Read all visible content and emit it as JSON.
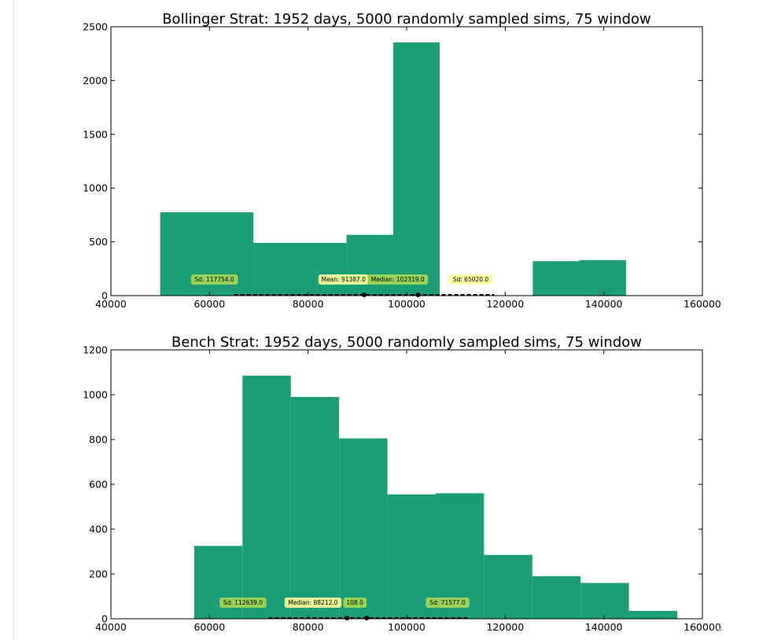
{
  "colors": {
    "bar": "#1b9e77",
    "tag_green": "#a6d854",
    "tag_yellow": "#ffff99",
    "axis": "#000000"
  },
  "chart_data": [
    {
      "type": "bar",
      "title": "Bollinger Strat: 1952 days, 5000 randomly sampled sims, 75 window",
      "xlim": [
        40000,
        160000
      ],
      "ylim": [
        0,
        2500
      ],
      "xticks": [
        "40000",
        "60000",
        "80000",
        "100000",
        "120000",
        "140000",
        "160000"
      ],
      "yticks": [
        "0",
        "500",
        "1000",
        "1500",
        "2000",
        "2500"
      ],
      "bins": [
        {
          "x0": 50000,
          "x1": 68900,
          "count": 775
        },
        {
          "x0": 68900,
          "x1": 87800,
          "count": 490
        },
        {
          "x0": 87800,
          "x1": 106700,
          "count": 565
        },
        {
          "x0": 106700,
          "x1": 125600,
          "count": 0
        },
        {
          "x0": 125600,
          "x1": 144500,
          "count": 320
        }
      ],
      "overlays": [
        {
          "x0": 68900,
          "x1": 87800,
          "count": 490
        },
        {
          "x0": 87800,
          "x1": 97300,
          "count": 170
        },
        {
          "x0": 97300,
          "x1": 106700,
          "count": 2355
        },
        {
          "x0": 135000,
          "x1": 144500,
          "count": 330
        }
      ],
      "dashed_range": [
        65000,
        117754
      ],
      "points": [
        91387,
        102319
      ],
      "annotations": [
        {
          "x": 61000,
          "text": "Sd: 117754.0",
          "style": "green"
        },
        {
          "x": 87200,
          "text": "Mean: 91387.0",
          "style": "yellow"
        },
        {
          "x": 98200,
          "text": "Median: 102319.0",
          "style": "green"
        },
        {
          "x": 113000,
          "text": "Sd: 65020.0",
          "style": "yellow"
        }
      ]
    },
    {
      "type": "bar",
      "title": "Bench Strat: 1952 days, 5000 randomly sampled sims, 75 window",
      "xlim": [
        40000,
        160000
      ],
      "ylim": [
        0,
        1200
      ],
      "xticks": [
        "40000",
        "60000",
        "80000",
        "100000",
        "120000",
        "140000",
        "160000"
      ],
      "yticks": [
        "0",
        "200",
        "400",
        "600",
        "800",
        "1000",
        "1200"
      ],
      "bins": [
        {
          "x0": 56900,
          "x1": 66700,
          "count": 325
        },
        {
          "x0": 66700,
          "x1": 76500,
          "count": 1085
        },
        {
          "x0": 76500,
          "x1": 86300,
          "count": 990
        },
        {
          "x0": 86300,
          "x1": 96100,
          "count": 805
        },
        {
          "x0": 96100,
          "x1": 105900,
          "count": 555
        },
        {
          "x0": 105900,
          "x1": 115700,
          "count": 560
        },
        {
          "x0": 115700,
          "x1": 125500,
          "count": 285
        },
        {
          "x0": 125500,
          "x1": 135300,
          "count": 190
        },
        {
          "x0": 135300,
          "x1": 145100,
          "count": 160
        },
        {
          "x0": 145100,
          "x1": 154900,
          "count": 35
        }
      ],
      "overlays": [],
      "dashed_range": [
        72000,
        112639
      ],
      "points": [
        87900,
        91900
      ],
      "annotations": [
        {
          "x": 66800,
          "text": "Sd: 112639.0",
          "style": "green"
        },
        {
          "x": 89500,
          "text": "108.0",
          "style": "green"
        },
        {
          "x": 81000,
          "text": "Median: 88212.0",
          "style": "yellow"
        },
        {
          "x": 108300,
          "text": "Sd: 71577.0",
          "style": "green"
        }
      ]
    }
  ]
}
